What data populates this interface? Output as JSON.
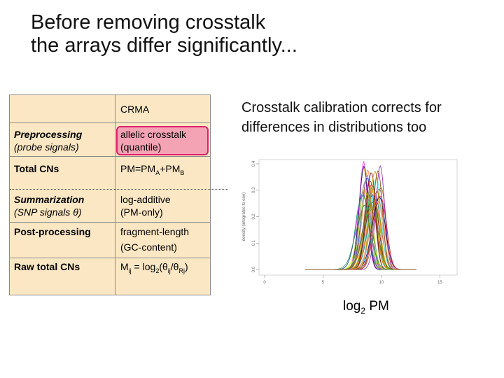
{
  "title": {
    "line1": "Before removing crosstalk",
    "line2": "the arrays differ significantly..."
  },
  "table": {
    "header": "CRMA",
    "rows": {
      "preprocessing": {
        "label1": "Preprocessing",
        "label2": "(probe signals)",
        "value1": "allelic crosstalk",
        "value2": "(quantile)"
      },
      "total_cns": {
        "label": "Total CNs",
        "value_main": "PM=PM",
        "value_sub_a": "A",
        "value_mid": "+PM",
        "value_sub_b": "B"
      },
      "summarization": {
        "label1": "Summarization",
        "label2": "(SNP signals θ)",
        "value1": "log-additive",
        "value2": "(PM-only)"
      },
      "post_processing": {
        "label": "Post-processing",
        "value1": "fragment-length",
        "value2": "(GC-content)"
      },
      "raw_total_cns": {
        "label": "Raw total CNs",
        "v_a": "M",
        "v_sub_ij": "ij",
        "v_b": " = log",
        "v_sub_2": "2",
        "v_c": "(θ",
        "v_sub_ij2": "ij",
        "v_d": "/θ",
        "v_sub_rj": "Rj",
        "v_e": ")"
      }
    }
  },
  "note": {
    "line1": "Crosstalk calibration corrects for",
    "line2": "differences in distributions too"
  },
  "chart_data": {
    "type": "line",
    "xlabel_main": "log",
    "xlabel_sub": "2",
    "xlabel_tail": " PM",
    "ylabel": "density (integrates to one)",
    "xlim": [
      0,
      16
    ],
    "ylim": [
      0,
      0.4
    ],
    "x_ticks": [
      "0",
      "5",
      "10",
      "15"
    ],
    "y_ticks": [
      "0.0",
      "0.1",
      "0.2",
      "0.3",
      "0.4"
    ],
    "series_count": 40,
    "curve_model": "gaussian-like density curves, one per array",
    "peak_x_range": [
      8.4,
      10.0
    ],
    "peak_y_range": [
      0.23,
      0.4
    ],
    "colors": [
      "#e6194b",
      "#3cb44b",
      "#ffb300",
      "#4363d8",
      "#f58231",
      "#911eb4",
      "#46f0f0",
      "#f032e6",
      "#bcf60c",
      "#fabebe",
      "#008080",
      "#9a6324",
      "#800000",
      "#808000",
      "#000075",
      "#808080",
      "#c49a00",
      "#ff7f50",
      "#2e8b57",
      "#8b4513"
    ]
  }
}
